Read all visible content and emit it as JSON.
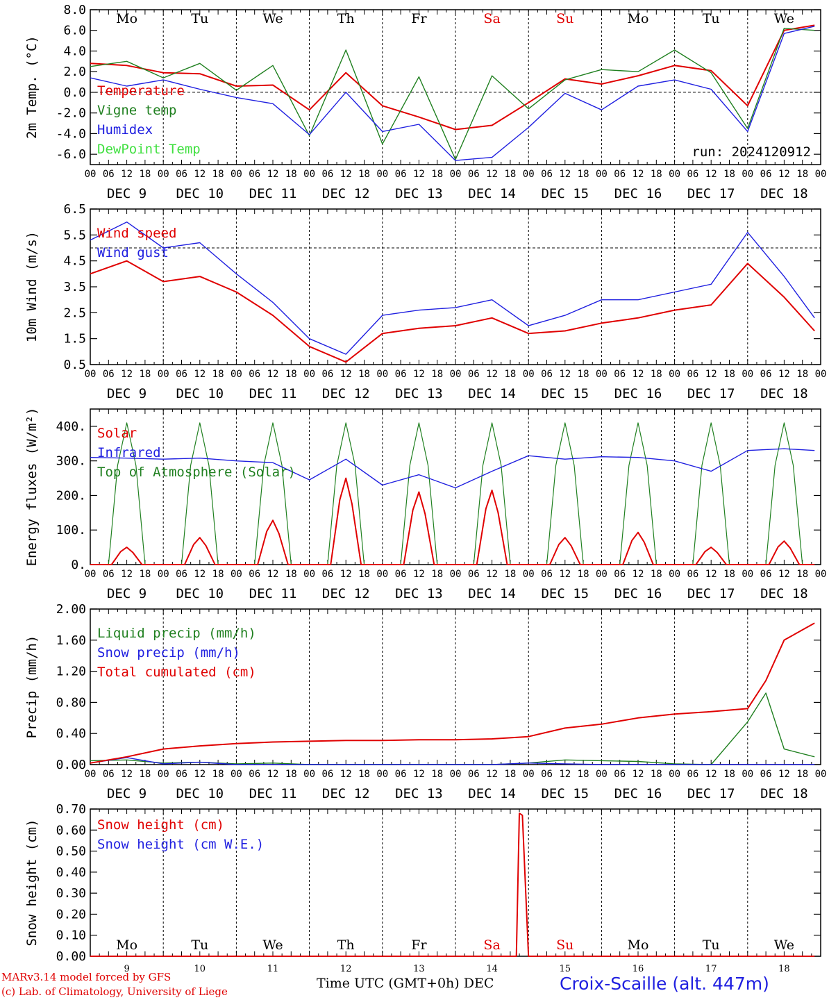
{
  "footer": {
    "model": "MARv3.14 model forced by GFS",
    "copyright": "(c) Lab. of Climatology, University of Liege",
    "time_label": "Time UTC (GMT+0h) DEC",
    "station": "Croix-Scaille (alt. 447m)"
  },
  "colors": {
    "red": "#e00000",
    "green": "#208020",
    "blue": "#2020e0",
    "lightgreen": "#40e040"
  },
  "chart_data": [
    {
      "type": "line",
      "ylabel": "2m Temp. (°C)",
      "ylim": [
        -7,
        8
      ],
      "yticks": [
        "8.0",
        "6.0",
        "4.0",
        "2.0",
        "0.0",
        "-2.0",
        "-4.0",
        "-6.0"
      ],
      "ytick_values": [
        8,
        6,
        4,
        2,
        0,
        -2,
        -4,
        -6
      ],
      "weekdays": [
        "Mo",
        "Tu",
        "We",
        "Th",
        "Fr",
        "Sa",
        "Su",
        "Mo",
        "Tu",
        "We"
      ],
      "weekend_days": [
        5,
        6
      ],
      "run_label": "run: 2024120912",
      "dashed_line_y": 0,
      "x_hours": [
        0,
        12,
        24,
        36,
        48,
        60,
        72,
        84,
        96,
        108,
        120,
        132,
        144,
        156,
        168,
        180,
        192,
        204,
        216,
        228,
        238
      ],
      "series": [
        {
          "name": "Temperature",
          "color": "red",
          "values": [
            2.8,
            2.6,
            1.9,
            1.8,
            0.6,
            0.7,
            -1.7,
            1.9,
            -1.3,
            -2.4,
            -3.6,
            -3.2,
            -1.0,
            1.3,
            0.8,
            1.6,
            2.6,
            2.1,
            -1.3,
            6.0,
            6.5
          ]
        },
        {
          "name": "Vigne temp",
          "color": "green",
          "values": [
            2.5,
            3.0,
            1.4,
            2.8,
            0.2,
            2.6,
            -4.2,
            4.1,
            -5.0,
            1.5,
            -6.5,
            1.6,
            -1.6,
            1.2,
            2.2,
            2.0,
            4.1,
            1.9,
            -3.5,
            6.2,
            6.0
          ]
        },
        {
          "name": "Humidex",
          "color": "blue",
          "values": [
            1.4,
            0.6,
            1.2,
            0.3,
            -0.5,
            -1.1,
            -4.1,
            0.0,
            -3.8,
            -3.1,
            -6.6,
            -6.3,
            -3.4,
            -0.1,
            -1.7,
            0.6,
            1.2,
            0.3,
            -3.8,
            5.7,
            6.4
          ]
        },
        {
          "name": "DewPoint Temp",
          "color": "lightgreen",
          "values": []
        }
      ]
    },
    {
      "type": "line",
      "ylabel": "10m Wind (m/s)",
      "ylim": [
        0.5,
        6.5
      ],
      "yticks": [
        "6.5",
        "5.5",
        "4.5",
        "3.5",
        "2.5",
        "1.5",
        "0.5"
      ],
      "ytick_values": [
        6.5,
        5.5,
        4.5,
        3.5,
        2.5,
        1.5,
        0.5
      ],
      "dashed_line_y": 5.0,
      "x_hours": [
        0,
        12,
        24,
        36,
        48,
        60,
        72,
        84,
        96,
        108,
        120,
        132,
        144,
        156,
        168,
        180,
        192,
        204,
        216,
        228,
        238
      ],
      "series": [
        {
          "name": "Wind speed",
          "color": "red",
          "values": [
            4.0,
            4.5,
            3.7,
            3.9,
            3.3,
            2.4,
            1.2,
            0.6,
            1.7,
            1.9,
            2.0,
            2.3,
            1.7,
            1.8,
            2.1,
            2.3,
            2.6,
            2.8,
            4.4,
            3.1,
            1.8
          ]
        },
        {
          "name": "Wind gust",
          "color": "blue",
          "values": [
            5.3,
            6.0,
            5.0,
            5.2,
            4.0,
            2.9,
            1.5,
            0.9,
            2.4,
            2.6,
            2.7,
            3.0,
            2.0,
            2.4,
            3.0,
            3.0,
            3.3,
            3.6,
            5.6,
            3.9,
            2.3
          ]
        }
      ]
    },
    {
      "type": "line",
      "ylabel": "Energy fluxes (W/m²)",
      "ylim": [
        0,
        450
      ],
      "yticks": [
        "400.",
        "300.",
        "200.",
        "100.",
        "0."
      ],
      "ytick_values": [
        400,
        300,
        200,
        100,
        0
      ],
      "solar_peaks": [
        50,
        78,
        128,
        250,
        210,
        215,
        78,
        93,
        50,
        68
      ],
      "toa_peak": 410,
      "x_hours": [
        0,
        12,
        24,
        36,
        48,
        60,
        72,
        84,
        96,
        108,
        120,
        132,
        144,
        156,
        168,
        180,
        192,
        204,
        216,
        228,
        238
      ],
      "series": [
        {
          "name": "Solar",
          "color": "red",
          "values": []
        },
        {
          "name": "Infrared",
          "color": "blue",
          "values": [
            310,
            308,
            305,
            308,
            300,
            295,
            245,
            305,
            230,
            260,
            222,
            270,
            315,
            305,
            312,
            310,
            300,
            270,
            330,
            335,
            330
          ]
        },
        {
          "name": "Top of Atmosphere (Solar)",
          "color": "green",
          "values": []
        }
      ]
    },
    {
      "type": "line",
      "ylabel": "Precip (mm/h)",
      "ylim": [
        0,
        2
      ],
      "yticks": [
        "2.00",
        "1.60",
        "1.20",
        "0.80",
        "0.40",
        "0.00"
      ],
      "ytick_values": [
        2.0,
        1.6,
        1.2,
        0.8,
        0.4,
        0.0
      ],
      "x_hours": [
        0,
        12,
        24,
        36,
        48,
        60,
        72,
        84,
        96,
        108,
        120,
        132,
        144,
        156,
        168,
        180,
        192,
        204,
        216,
        222,
        228,
        238
      ],
      "series": [
        {
          "name": "Liquid precip (mm/h)",
          "color": "green",
          "values": [
            0.05,
            0.06,
            0.02,
            0.03,
            0.01,
            0.02,
            0.0,
            0.0,
            0.0,
            0.0,
            0.0,
            0.0,
            0.02,
            0.06,
            0.05,
            0.04,
            0.01,
            0.0,
            0.55,
            0.92,
            0.2,
            0.1
          ]
        },
        {
          "name": "Snow precip (mm/h)",
          "color": "blue",
          "values": [
            0.02,
            0.09,
            0.01,
            0.03,
            0.0,
            0.0,
            0.0,
            0.0,
            0.0,
            0.0,
            0.0,
            0.0,
            0.02,
            0.01,
            0.0,
            0.0,
            0.0,
            0.0,
            0.0,
            0.0,
            0.0,
            0.0
          ]
        },
        {
          "name": "Total cumulated (cm)",
          "color": "red",
          "values": [
            0.02,
            0.1,
            0.2,
            0.24,
            0.27,
            0.29,
            0.3,
            0.31,
            0.31,
            0.32,
            0.32,
            0.33,
            0.36,
            0.47,
            0.52,
            0.6,
            0.65,
            0.68,
            0.72,
            1.08,
            1.6,
            1.82
          ]
        }
      ]
    },
    {
      "type": "line",
      "ylabel": "Snow height (cm)",
      "ylim": [
        0,
        0.7
      ],
      "yticks": [
        "0.70",
        "0.60",
        "0.50",
        "0.40",
        "0.30",
        "0.20",
        "0.10",
        "0.00"
      ],
      "ytick_values": [
        0.7,
        0.6,
        0.5,
        0.4,
        0.3,
        0.2,
        0.1,
        0.0
      ],
      "weekdays": [
        "Mo",
        "Tu",
        "We",
        "Th",
        "Fr",
        "Sa",
        "Su",
        "Mo",
        "Tu",
        "We"
      ],
      "weekend_days": [
        5,
        6
      ],
      "day_numbers": [
        "9",
        "10",
        "11",
        "12",
        "13",
        "14",
        "15",
        "16",
        "17",
        "18"
      ],
      "x_hours": [
        0,
        132,
        140,
        141,
        142,
        144,
        238
      ],
      "series": [
        {
          "name": "Snow height (cm)",
          "color": "red",
          "values": [
            0.0,
            0.0,
            0.0,
            0.68,
            0.67,
            0.0,
            0.0
          ]
        },
        {
          "name": "Snow height (cm W.E.)",
          "color": "blue",
          "values": []
        }
      ]
    }
  ],
  "x_axis": {
    "hour_labels": [
      "00",
      "06",
      "12",
      "18"
    ],
    "day_labels": [
      "DEC  9",
      "DEC 10",
      "DEC 11",
      "DEC 12",
      "DEC 13",
      "DEC 14",
      "DEC 15",
      "DEC 16",
      "DEC 17",
      "DEC 18"
    ],
    "final_hour_label": "00"
  }
}
